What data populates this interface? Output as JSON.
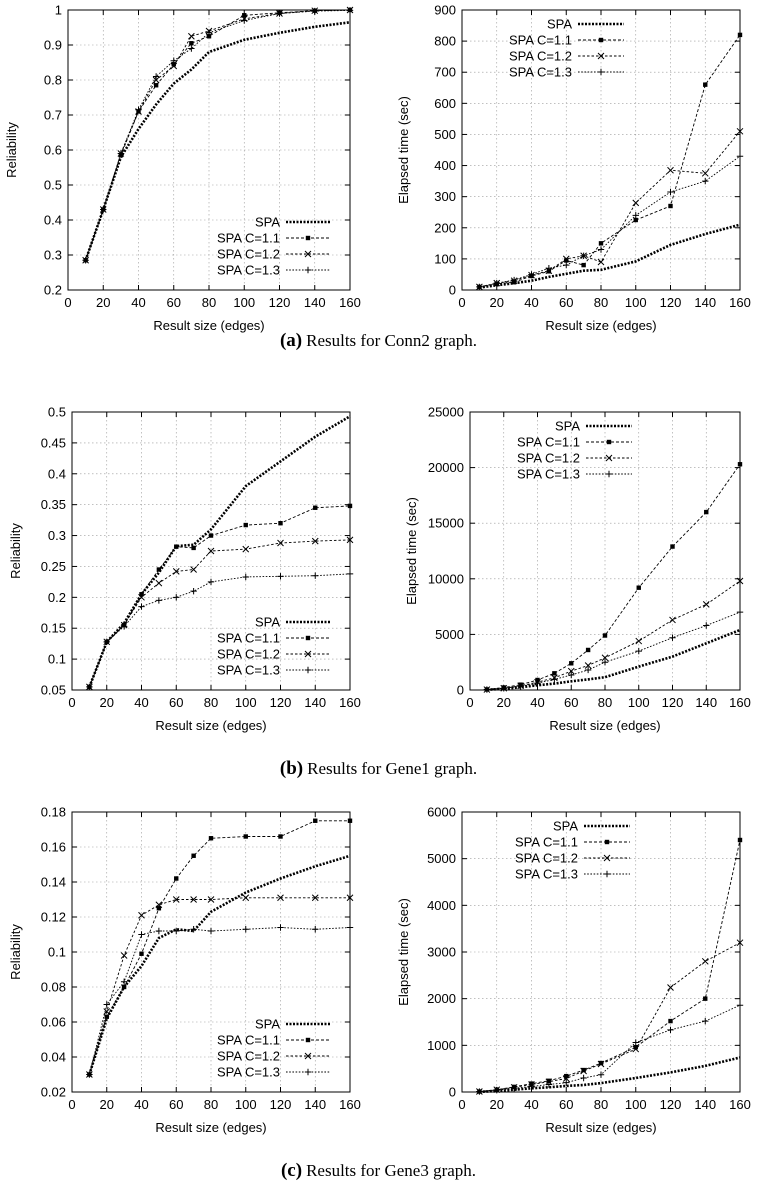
{
  "figure": {
    "captions": [
      {
        "label": "(a)",
        "text": "Results for Conn2 graph."
      },
      {
        "label": "(b)",
        "text": "Results for Gene1 graph."
      },
      {
        "label": "(c)",
        "text": "Results for Gene3 graph."
      }
    ]
  },
  "series_styles": [
    {
      "name": "SPA",
      "color": "#000000",
      "marker": "none",
      "dash": "2,1.5",
      "width": 2.6
    },
    {
      "name": "SPA C=1.1",
      "color": "#000000",
      "marker": "square",
      "dash": "3,2",
      "width": 0.9
    },
    {
      "name": "SPA C=1.2",
      "color": "#000000",
      "marker": "cross",
      "dash": "2.5,2",
      "width": 0.9
    },
    {
      "name": "SPA C=1.3",
      "color": "#000000",
      "marker": "plus",
      "dash": "1.6,1.6",
      "width": 0.9
    }
  ],
  "chart_data": [
    {
      "type": "line",
      "xlabel": "Result size (edges)",
      "ylabel": "Reliability",
      "xlim": [
        0,
        160
      ],
      "ylim": [
        0.2,
        1
      ],
      "xticks": [
        0,
        20,
        40,
        60,
        80,
        100,
        120,
        140,
        160
      ],
      "yticks": [
        0.2,
        0.3,
        0.4,
        0.5,
        0.6,
        0.7,
        0.8,
        0.9,
        1
      ],
      "grid": true,
      "legend_position": "bottom-right",
      "x": [
        10,
        20,
        30,
        40,
        50,
        60,
        70,
        80,
        100,
        120,
        140,
        160
      ],
      "series": [
        {
          "name": "SPA",
          "values": [
            0.285,
            0.43,
            0.58,
            0.66,
            0.73,
            0.79,
            0.83,
            0.88,
            0.915,
            0.935,
            0.952,
            0.965
          ]
        },
        {
          "name": "SPA C=1.1",
          "values": [
            0.285,
            0.43,
            0.585,
            0.71,
            0.785,
            0.845,
            0.905,
            0.925,
            0.985,
            0.992,
            0.998,
            1.0
          ]
        },
        {
          "name": "SPA C=1.2",
          "values": [
            0.285,
            0.43,
            0.59,
            0.71,
            0.8,
            0.84,
            0.925,
            0.94,
            0.975,
            0.99,
            0.998,
            1.0
          ]
        },
        {
          "name": "SPA C=1.3",
          "values": [
            0.285,
            0.43,
            0.59,
            0.715,
            0.81,
            0.855,
            0.89,
            0.935,
            0.97,
            0.99,
            0.997,
            0.999
          ]
        }
      ]
    },
    {
      "type": "line",
      "xlabel": "Result size (edges)",
      "ylabel": "Elapsed time (sec)",
      "xlim": [
        0,
        160
      ],
      "ylim": [
        0,
        900
      ],
      "xticks": [
        0,
        20,
        40,
        60,
        80,
        100,
        120,
        140,
        160
      ],
      "yticks": [
        0,
        100,
        200,
        300,
        400,
        500,
        600,
        700,
        800,
        900
      ],
      "grid": true,
      "legend_position": "top-left",
      "x": [
        10,
        20,
        30,
        40,
        50,
        60,
        70,
        80,
        100,
        120,
        140,
        160
      ],
      "series": [
        {
          "name": "SPA",
          "values": [
            8,
            15,
            22,
            30,
            42,
            52,
            62,
            65,
            92,
            145,
            180,
            210
          ]
        },
        {
          "name": "SPA C=1.1",
          "values": [
            10,
            20,
            25,
            45,
            60,
            95,
            80,
            150,
            225,
            270,
            660,
            820
          ]
        },
        {
          "name": "SPA C=1.2",
          "values": [
            10,
            22,
            30,
            48,
            62,
            100,
            110,
            90,
            280,
            385,
            375,
            510
          ]
        },
        {
          "name": "SPA C=1.3",
          "values": [
            10,
            22,
            32,
            50,
            70,
            80,
            110,
            130,
            240,
            315,
            350,
            430
          ]
        }
      ]
    },
    {
      "type": "line",
      "xlabel": "Result size (edges)",
      "ylabel": "Reliability",
      "xlim": [
        0,
        160
      ],
      "ylim": [
        0.05,
        0.5
      ],
      "xticks": [
        0,
        20,
        40,
        60,
        80,
        100,
        120,
        140,
        160
      ],
      "yticks": [
        0.05,
        0.1,
        0.15,
        0.2,
        0.25,
        0.3,
        0.35,
        0.4,
        0.45,
        0.5
      ],
      "grid": true,
      "legend_position": "bottom-right",
      "x": [
        10,
        20,
        30,
        40,
        50,
        60,
        70,
        80,
        100,
        120,
        140,
        160
      ],
      "series": [
        {
          "name": "SPA",
          "values": [
            0.055,
            0.128,
            0.158,
            0.205,
            0.24,
            0.283,
            0.285,
            0.31,
            0.38,
            0.42,
            0.46,
            0.493
          ]
        },
        {
          "name": "SPA C=1.1",
          "values": [
            0.055,
            0.128,
            0.155,
            0.205,
            0.245,
            0.282,
            0.28,
            0.3,
            0.317,
            0.32,
            0.345,
            0.348
          ]
        },
        {
          "name": "SPA C=1.2",
          "values": [
            0.055,
            0.128,
            0.155,
            0.2,
            0.223,
            0.242,
            0.245,
            0.275,
            0.278,
            0.288,
            0.291,
            0.293
          ]
        },
        {
          "name": "SPA C=1.3",
          "values": [
            0.055,
            0.128,
            0.153,
            0.185,
            0.195,
            0.2,
            0.21,
            0.225,
            0.233,
            0.234,
            0.235,
            0.238
          ]
        }
      ]
    },
    {
      "type": "line",
      "xlabel": "Result size (edges)",
      "ylabel": "Elapsed time (sec)",
      "xlim": [
        0,
        160
      ],
      "ylim": [
        0,
        25000
      ],
      "xticks": [
        0,
        20,
        40,
        60,
        80,
        100,
        120,
        140,
        160
      ],
      "yticks": [
        0,
        5000,
        10000,
        15000,
        20000,
        25000
      ],
      "grid": true,
      "legend_position": "top-left",
      "x": [
        10,
        20,
        30,
        40,
        50,
        60,
        70,
        80,
        100,
        120,
        140,
        160
      ],
      "series": [
        {
          "name": "SPA",
          "values": [
            30,
            100,
            250,
            420,
            580,
            780,
            950,
            1150,
            2100,
            3000,
            4200,
            5400
          ]
        },
        {
          "name": "SPA C=1.1",
          "values": [
            50,
            220,
            480,
            900,
            1500,
            2400,
            3600,
            4900,
            9200,
            12900,
            16000,
            20300
          ]
        },
        {
          "name": "SPA C=1.2",
          "values": [
            40,
            160,
            380,
            700,
            1100,
            1700,
            2200,
            2900,
            4400,
            6300,
            7700,
            9800
          ]
        },
        {
          "name": "SPA C=1.3",
          "values": [
            40,
            150,
            330,
            620,
            950,
            1350,
            1800,
            2500,
            3500,
            4700,
            5800,
            7000
          ]
        }
      ]
    },
    {
      "type": "line",
      "xlabel": "Result size (edges)",
      "ylabel": "Reliability",
      "xlim": [
        0,
        160
      ],
      "ylim": [
        0.02,
        0.18
      ],
      "xticks": [
        0,
        20,
        40,
        60,
        80,
        100,
        120,
        140,
        160
      ],
      "yticks": [
        0.02,
        0.04,
        0.06,
        0.08,
        0.1,
        0.12,
        0.14,
        0.16,
        0.18
      ],
      "grid": true,
      "legend_position": "bottom-right",
      "x": [
        10,
        20,
        30,
        40,
        50,
        60,
        70,
        80,
        100,
        120,
        140,
        160
      ],
      "series": [
        {
          "name": "SPA",
          "values": [
            0.03,
            0.062,
            0.08,
            0.092,
            0.108,
            0.113,
            0.112,
            0.123,
            0.134,
            0.142,
            0.149,
            0.155
          ]
        },
        {
          "name": "SPA C=1.1",
          "values": [
            0.03,
            0.063,
            0.08,
            0.099,
            0.125,
            0.142,
            0.155,
            0.165,
            0.166,
            0.166,
            0.175,
            0.175
          ]
        },
        {
          "name": "SPA C=1.2",
          "values": [
            0.03,
            0.066,
            0.098,
            0.121,
            0.127,
            0.13,
            0.13,
            0.13,
            0.131,
            0.131,
            0.131,
            0.131
          ]
        },
        {
          "name": "SPA C=1.3",
          "values": [
            0.03,
            0.07,
            0.083,
            0.11,
            0.112,
            0.112,
            0.113,
            0.112,
            0.113,
            0.114,
            0.113,
            0.114
          ]
        }
      ]
    },
    {
      "type": "line",
      "xlabel": "Result size (edges)",
      "ylabel": "Elapsed time (sec)",
      "xlim": [
        0,
        160
      ],
      "ylim": [
        0,
        6000
      ],
      "xticks": [
        0,
        20,
        40,
        60,
        80,
        100,
        120,
        140,
        160
      ],
      "yticks": [
        0,
        1000,
        2000,
        3000,
        4000,
        5000,
        6000
      ],
      "grid": true,
      "legend_position": "top-left",
      "x": [
        10,
        20,
        30,
        40,
        50,
        60,
        70,
        80,
        100,
        120,
        140,
        160
      ],
      "series": [
        {
          "name": "SPA",
          "values": [
            5,
            20,
            50,
            80,
            100,
            130,
            150,
            190,
            300,
            420,
            560,
            740
          ]
        },
        {
          "name": "SPA C=1.1",
          "values": [
            10,
            50,
            110,
            180,
            240,
            340,
            470,
            620,
            960,
            1520,
            2000,
            5400
          ]
        },
        {
          "name": "SPA C=1.2",
          "values": [
            10,
            50,
            100,
            160,
            220,
            290,
            450,
            600,
            920,
            2240,
            2800,
            3200
          ]
        },
        {
          "name": "SPA C=1.3",
          "values": [
            10,
            40,
            80,
            120,
            160,
            200,
            300,
            370,
            1060,
            1330,
            1520,
            1860
          ]
        }
      ]
    }
  ]
}
